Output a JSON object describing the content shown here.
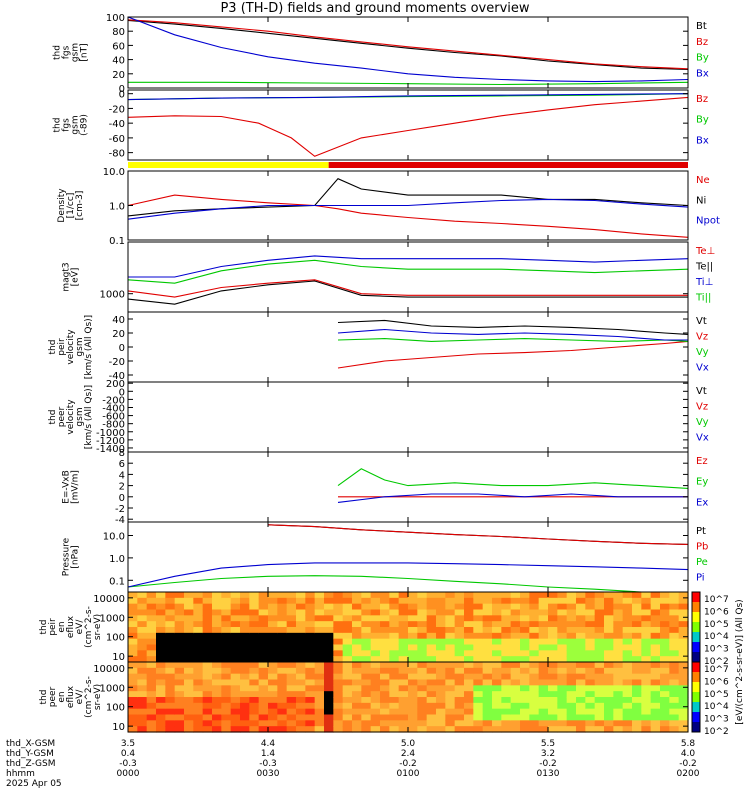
{
  "title": "P3 (TH-D) fields and ground moments overview",
  "colors": {
    "black": "#000000",
    "red": "#e00000",
    "green": "#00c800",
    "blue": "#0000d0",
    "yellow": "#ffff00",
    "orange": "#ff8c00"
  },
  "time_axis": {
    "ticks": [
      "0000",
      "0030",
      "0100",
      "0130",
      "0200"
    ],
    "rows": [
      {
        "label": "thd_X-GSM",
        "values": [
          "3.5",
          "4.4",
          "5.0",
          "5.5",
          "5.8"
        ]
      },
      {
        "label": "thd_Y-GSM",
        "values": [
          "0.4",
          "1.4",
          "2.4",
          "3.2",
          "4.0"
        ]
      },
      {
        "label": "thd_Z-GSM",
        "values": [
          "-0.3",
          "-0.3",
          "-0.2",
          "-0.2",
          "-0.2"
        ]
      },
      {
        "label": "hhmm",
        "values": [
          "0000",
          "0030",
          "0100",
          "0130",
          "0200"
        ]
      }
    ],
    "date": "2025 Apr 05"
  },
  "colorbar": {
    "label": "[eV/(cm^2-s-sr-eV)] (All Qs)",
    "ticks_top": [
      "10^7",
      "10^6",
      "10^5",
      "10^4",
      "10^3",
      "10^2"
    ],
    "ticks_bottom": [
      "10^7",
      "10^6",
      "10^5",
      "10^4",
      "10^3",
      "10^2"
    ]
  },
  "chart_data": [
    {
      "type": "line",
      "ylabel": "thd fgs gsm [nT]",
      "yticks": [
        "100",
        "80",
        "60",
        "40",
        "20",
        "0"
      ],
      "ylim": [
        0,
        100
      ],
      "series": [
        {
          "name": "Bt",
          "color": "#000000",
          "x": [
            0,
            10,
            20,
            30,
            40,
            50,
            60,
            70,
            80,
            90,
            100,
            110,
            120
          ],
          "y": [
            95,
            90,
            84,
            77,
            70,
            63,
            56,
            50,
            45,
            38,
            33,
            28,
            26
          ]
        },
        {
          "name": "Bz",
          "color": "#e00000",
          "x": [
            0,
            10,
            20,
            30,
            40,
            50,
            60,
            70,
            80,
            90,
            100,
            110,
            120
          ],
          "y": [
            96,
            92,
            86,
            80,
            72,
            65,
            58,
            52,
            46,
            40,
            34,
            30,
            27
          ]
        },
        {
          "name": "By",
          "color": "#00c800",
          "x": [
            0,
            20,
            40,
            60,
            80,
            100,
            120
          ],
          "y": [
            8,
            8,
            7,
            6,
            5,
            6,
            8
          ]
        },
        {
          "name": "Bx",
          "color": "#0000d0",
          "x": [
            0,
            10,
            20,
            30,
            40,
            50,
            60,
            70,
            80,
            90,
            100,
            110,
            120
          ],
          "y": [
            100,
            75,
            57,
            44,
            35,
            28,
            20,
            15,
            12,
            10,
            9,
            10,
            12
          ]
        }
      ]
    },
    {
      "type": "line",
      "ylabel": "thd fgs gsm (-89)",
      "yticks": [
        "0",
        "-20",
        "-40",
        "-60",
        "-80"
      ],
      "ylim": [
        -90,
        5
      ],
      "series": [
        {
          "name": "Bz",
          "color": "#e00000",
          "x": [
            0,
            10,
            20,
            28,
            35,
            40,
            50,
            60,
            70,
            80,
            90,
            100,
            110,
            120
          ],
          "y": [
            -32,
            -30,
            -31,
            -40,
            -60,
            -85,
            -60,
            -50,
            -40,
            -30,
            -22,
            -15,
            -10,
            -5
          ]
        },
        {
          "name": "By",
          "color": "#00c800",
          "x": [
            0,
            20,
            40,
            60,
            80,
            100,
            120
          ],
          "y": [
            -8,
            -6,
            -5,
            -4,
            -3,
            -2,
            0
          ]
        },
        {
          "name": "Bx",
          "color": "#0000d0",
          "x": [
            0,
            20,
            40,
            60,
            80,
            100,
            120
          ],
          "y": [
            -8,
            -6,
            -5,
            -3,
            -2,
            -1,
            0
          ]
        }
      ]
    },
    {
      "type": "line",
      "ylabel": "Density [1/cc] [cm-3]",
      "yticks": [
        "10.0",
        "1.0",
        "0.1"
      ],
      "log": true,
      "ylim": [
        0.1,
        10
      ],
      "series": [
        {
          "name": "Ne",
          "color": "#e00000",
          "x": [
            0,
            10,
            20,
            30,
            40,
            45,
            50,
            60,
            70,
            80,
            90,
            100,
            110,
            120
          ],
          "y": [
            1,
            2,
            1.5,
            1.2,
            1,
            0.8,
            0.6,
            0.45,
            0.35,
            0.3,
            0.25,
            0.2,
            0.15,
            0.12
          ]
        },
        {
          "name": "Ni",
          "color": "#000000",
          "x": [
            0,
            10,
            20,
            30,
            40,
            45,
            50,
            60,
            70,
            80,
            90,
            100,
            110,
            120
          ],
          "y": [
            0.5,
            0.7,
            0.8,
            0.9,
            1,
            6,
            3,
            2,
            2,
            2,
            1.5,
            1.5,
            1.2,
            1
          ]
        },
        {
          "name": "Npot",
          "color": "#0000d0",
          "x": [
            0,
            10,
            20,
            30,
            40,
            45,
            50,
            60,
            70,
            80,
            90,
            100,
            110,
            120
          ],
          "y": [
            0.4,
            0.6,
            0.8,
            1,
            1,
            1,
            1,
            1,
            1.2,
            1.4,
            1.5,
            1.4,
            1.1,
            0.9
          ]
        }
      ]
    },
    {
      "type": "line",
      "ylabel": "magt3 [eV]",
      "yticks": [
        "1000"
      ],
      "log": true,
      "ylim": [
        300,
        30000
      ],
      "series": [
        {
          "name": "Te⊥",
          "color": "#e00000",
          "x": [
            0,
            10,
            20,
            30,
            40,
            50,
            60,
            70,
            80,
            90,
            100,
            110,
            120
          ],
          "y": [
            1200,
            800,
            1500,
            2000,
            2500,
            1000,
            900,
            900,
            900,
            900,
            900,
            900,
            900
          ]
        },
        {
          "name": "Te||",
          "color": "#000000",
          "x": [
            0,
            10,
            20,
            30,
            40,
            50,
            60,
            70,
            80,
            90,
            100,
            110,
            120
          ],
          "y": [
            700,
            500,
            1200,
            1800,
            2300,
            900,
            800,
            800,
            800,
            800,
            800,
            800,
            800
          ]
        },
        {
          "name": "Ti⊥",
          "color": "#0000d0",
          "x": [
            0,
            10,
            20,
            30,
            40,
            50,
            60,
            70,
            80,
            90,
            100,
            110,
            120
          ],
          "y": [
            3000,
            3000,
            6000,
            9000,
            12000,
            10000,
            10000,
            10000,
            10000,
            9000,
            8000,
            9000,
            10000
          ]
        },
        {
          "name": "Ti||",
          "color": "#00c800",
          "x": [
            0,
            10,
            20,
            30,
            40,
            50,
            60,
            70,
            80,
            90,
            100,
            110,
            120
          ],
          "y": [
            2500,
            2000,
            4500,
            7000,
            9000,
            6000,
            5000,
            5000,
            5000,
            4500,
            4000,
            4500,
            5000
          ]
        }
      ]
    },
    {
      "type": "line",
      "ylabel": "thd peir velocity gsm [km/s (All Qs)]",
      "yticks": [
        "40",
        "20",
        "0",
        "-20",
        "-40"
      ],
      "ylim": [
        -50,
        50
      ],
      "series": [
        {
          "name": "Vt",
          "color": "#000000",
          "x": [
            45,
            55,
            65,
            75,
            85,
            95,
            105,
            115,
            120
          ],
          "y": [
            35,
            38,
            30,
            28,
            30,
            28,
            25,
            20,
            18
          ]
        },
        {
          "name": "Vz",
          "color": "#e00000",
          "x": [
            45,
            55,
            65,
            75,
            85,
            95,
            105,
            115,
            120
          ],
          "y": [
            -30,
            -20,
            -15,
            -10,
            -8,
            -5,
            0,
            5,
            8
          ]
        },
        {
          "name": "Vy",
          "color": "#00c800",
          "x": [
            45,
            55,
            65,
            75,
            85,
            95,
            105,
            115,
            120
          ],
          "y": [
            10,
            12,
            8,
            10,
            12,
            10,
            8,
            10,
            8
          ]
        },
        {
          "name": "Vx",
          "color": "#0000d0",
          "x": [
            45,
            55,
            65,
            75,
            85,
            95,
            105,
            115,
            120
          ],
          "y": [
            20,
            25,
            20,
            18,
            20,
            18,
            15,
            10,
            10
          ]
        }
      ]
    },
    {
      "type": "line",
      "ylabel": "thd peer velocity gsm [km/s (All Qs)]",
      "yticks": [
        "200",
        "0",
        "-200",
        "-400",
        "-600",
        "-800",
        "-1000",
        "-1200",
        "-1400"
      ],
      "ylim": [
        -1500,
        230
      ],
      "series": [
        {
          "name": "Vt",
          "color": "#000000",
          "x": [],
          "y": []
        },
        {
          "name": "Vz",
          "color": "#e00000",
          "x": [],
          "y": []
        },
        {
          "name": "Vy",
          "color": "#00c800",
          "x": [],
          "y": []
        },
        {
          "name": "Vx",
          "color": "#0000d0",
          "x": [],
          "y": []
        }
      ]
    },
    {
      "type": "line",
      "ylabel": "E=-VxB [mV/m]",
      "yticks": [
        "8",
        "6",
        "4",
        "2",
        "0",
        "-2",
        "-4"
      ],
      "ylim": [
        -4.5,
        8
      ],
      "series": [
        {
          "name": "Ez",
          "color": "#e00000",
          "x": [
            45,
            60,
            75,
            90,
            105,
            120
          ],
          "y": [
            0,
            0,
            0,
            0,
            0,
            0
          ]
        },
        {
          "name": "Ey",
          "color": "#00c800",
          "x": [
            45,
            50,
            55,
            60,
            70,
            80,
            90,
            100,
            110,
            120
          ],
          "y": [
            2,
            5,
            3,
            2,
            2.5,
            2,
            2,
            2.5,
            2,
            1.5
          ]
        },
        {
          "name": "Ex",
          "color": "#0000d0",
          "x": [
            45,
            55,
            65,
            75,
            85,
            95,
            105,
            115,
            120
          ],
          "y": [
            -1,
            0,
            0.5,
            0.5,
            0,
            0.5,
            0,
            0,
            0
          ]
        }
      ]
    },
    {
      "type": "line",
      "ylabel": "Pressure [nPa]",
      "yticks": [
        "10.0",
        "1.0",
        "0.1"
      ],
      "log": true,
      "ylim": [
        0.03,
        40
      ],
      "series": [
        {
          "name": "Pt",
          "color": "#000000",
          "x": [
            30,
            40,
            50,
            60,
            70,
            80,
            90,
            100,
            110,
            120
          ],
          "y": [
            30,
            25,
            18,
            14,
            11,
            9,
            7,
            5.5,
            4.5,
            4
          ]
        },
        {
          "name": "Pb",
          "color": "#e00000",
          "x": [
            30,
            40,
            50,
            60,
            70,
            80,
            90,
            100,
            110,
            120
          ],
          "y": [
            30,
            25,
            18,
            14,
            11,
            9,
            7,
            5.5,
            4.5,
            4
          ]
        },
        {
          "name": "Pe",
          "color": "#00c800",
          "x": [
            0,
            10,
            20,
            30,
            40,
            50,
            60,
            70,
            80,
            90,
            100,
            110,
            120
          ],
          "y": [
            0.05,
            0.08,
            0.12,
            0.15,
            0.16,
            0.15,
            0.12,
            0.09,
            0.07,
            0.05,
            0.04,
            0.03,
            0.03
          ]
        },
        {
          "name": "Pi",
          "color": "#0000d0",
          "x": [
            0,
            10,
            20,
            30,
            40,
            50,
            60,
            70,
            80,
            90,
            100,
            110,
            120
          ],
          "y": [
            0.05,
            0.15,
            0.35,
            0.5,
            0.6,
            0.6,
            0.6,
            0.55,
            0.5,
            0.45,
            0.4,
            0.35,
            0.3
          ]
        }
      ]
    },
    {
      "type": "heatmap",
      "ylabel": "thd peir en eflux eV/(cm^2-s-sr-eV)",
      "yticks": [
        "10000",
        "1000",
        "100",
        "10"
      ],
      "log": true,
      "ylim": [
        5,
        20000
      ]
    },
    {
      "type": "heatmap",
      "ylabel": "thd peer en eflux eV/(cm^2-s-sr-eV)",
      "yticks": [
        "10000",
        "1000",
        "100",
        "10"
      ],
      "log": true,
      "ylim": [
        5,
        20000
      ]
    }
  ],
  "panel_labels": [
    {
      "lines": [
        "thd",
        "fgs",
        "gsm",
        "[nT]"
      ],
      "legend": [
        "Bt",
        "Bz",
        "By",
        "Bx"
      ]
    },
    {
      "lines": [
        "thd",
        "fgs",
        "gsm",
        "(-89)"
      ],
      "legend": [
        "Bz",
        "By",
        "Bx"
      ]
    },
    {
      "lines": [
        "Density",
        "[1/cc]",
        "[cm-3]"
      ],
      "legend": [
        "Ne",
        "Ni",
        "Npot"
      ]
    },
    {
      "lines": [
        "magt3",
        "[eV]"
      ],
      "legend": [
        "Te⊥",
        "Te||",
        "Ti⊥",
        "Ti||"
      ]
    },
    {
      "lines": [
        "thd",
        "peir",
        "velocity",
        "gsm",
        "[km/s (All Qs)]"
      ],
      "legend": [
        "Vt",
        "Vz",
        "Vy",
        "Vx"
      ]
    },
    {
      "lines": [
        "thd",
        "peer",
        "velocity",
        "gsm",
        "[km/s (All Qs)]"
      ],
      "legend": [
        "Vt",
        "Vz",
        "Vy",
        "Vx"
      ]
    },
    {
      "lines": [
        "E=-VxB",
        "[mV/m]"
      ],
      "legend": [
        "Ez",
        "Ey",
        "Ex"
      ]
    },
    {
      "lines": [
        "Pressure",
        "[nPa]"
      ],
      "legend": [
        "Pt",
        "Pb",
        "Pe",
        "Pi"
      ]
    },
    {
      "lines": [
        "thd",
        "peir",
        "en",
        "eflux",
        "eV/",
        "(cm^2-s-",
        "sr-eV)"
      ],
      "legend": []
    },
    {
      "lines": [
        "thd",
        "peer",
        "en",
        "eflux",
        "eV/",
        "(cm^2-s-",
        "sr-eV)"
      ],
      "legend": []
    }
  ]
}
